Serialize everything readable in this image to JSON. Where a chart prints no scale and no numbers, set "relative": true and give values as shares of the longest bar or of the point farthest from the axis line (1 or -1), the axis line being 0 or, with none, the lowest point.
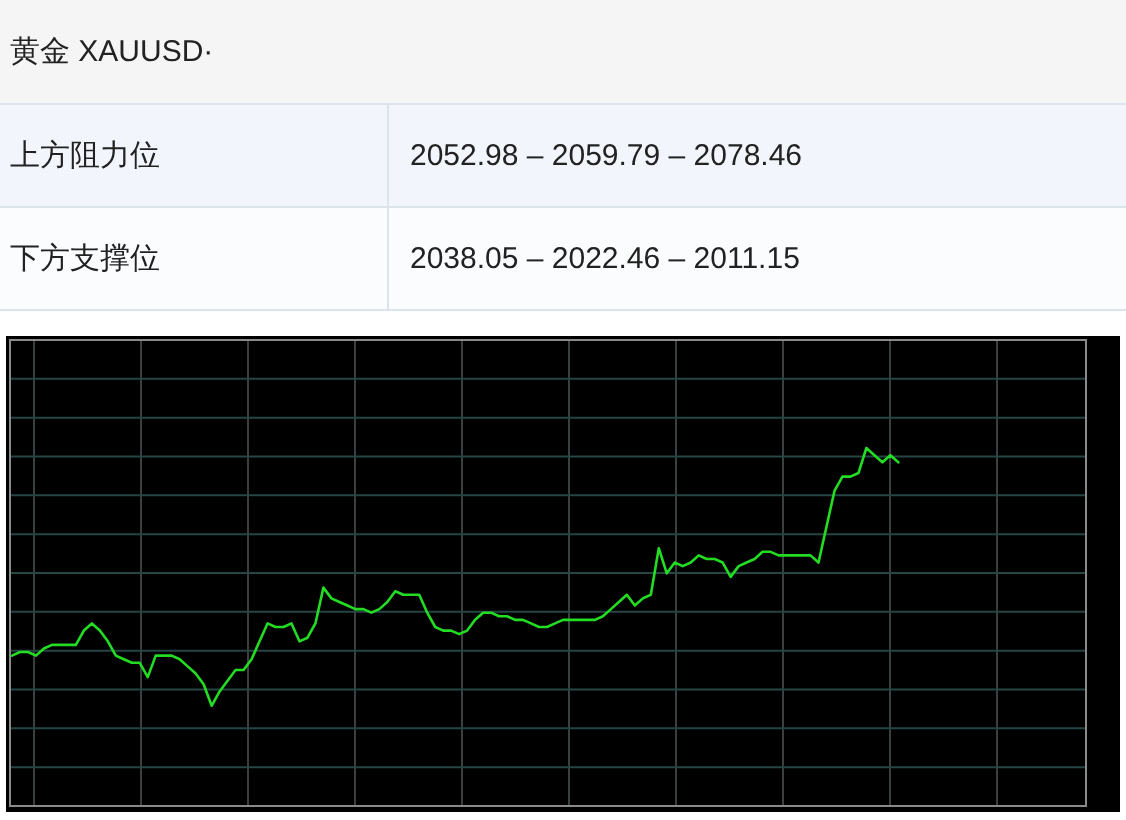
{
  "chart_data": [
    {
      "type": "other",
      "title": "黄金 XAUUSD·",
      "annotations": [
        "上方阻力位",
        "2052.98 – 2059.79 – 2078.46",
        "下方支撑位",
        "2038.05 – 2022.46 – 2011.15"
      ]
    },
    {
      "type": "line",
      "relative": true,
      "color": "#22dd22",
      "grid": true,
      "categories": [
        null,
        null,
        null,
        null,
        null,
        null,
        null,
        null,
        null,
        null,
        null,
        null,
        null,
        null,
        null,
        null,
        null,
        null,
        null,
        null,
        null,
        null,
        null,
        null,
        null,
        null,
        null,
        null,
        null,
        null,
        null,
        null,
        null,
        null,
        null,
        null,
        null,
        null,
        null,
        null,
        null,
        null,
        null,
        null,
        null,
        null,
        null,
        null,
        null,
        null,
        null,
        null,
        null,
        null,
        null,
        null,
        null,
        null,
        null,
        null,
        null,
        null,
        null,
        null,
        null,
        null,
        null,
        null,
        null,
        null,
        null,
        null,
        null,
        null,
        null,
        null,
        null,
        null,
        null,
        null,
        null,
        null,
        null,
        null,
        null,
        null,
        null,
        null,
        null,
        null,
        null,
        null,
        null,
        null,
        null,
        null,
        null,
        null,
        null,
        null,
        null,
        null,
        null,
        null,
        null,
        null,
        null,
        null,
        null,
        null,
        null,
        null,
        null,
        null,
        null,
        null,
        null,
        null,
        null,
        null,
        null,
        null,
        null,
        null,
        null,
        null,
        null,
        null,
        null,
        null,
        null,
        null,
        null,
        null,
        null
      ],
      "values": [
        0.42,
        0.43,
        0.43,
        0.42,
        0.44,
        0.45,
        0.45,
        0.45,
        0.45,
        0.49,
        0.51,
        0.49,
        0.46,
        0.42,
        0.41,
        0.4,
        0.4,
        0.36,
        0.42,
        0.42,
        0.42,
        0.41,
        0.39,
        0.37,
        0.34,
        0.28,
        0.32,
        0.35,
        0.38,
        0.38,
        0.41,
        0.46,
        0.51,
        0.5,
        0.5,
        0.51,
        0.46,
        0.47,
        0.51,
        0.61,
        0.58,
        0.57,
        0.56,
        0.55,
        0.55,
        0.54,
        0.55,
        0.57,
        0.6,
        0.59,
        0.59,
        0.59,
        0.54,
        0.5,
        0.49,
        0.49,
        0.48,
        0.49,
        0.52,
        0.54,
        0.54,
        0.53,
        0.53,
        0.52,
        0.52,
        0.51,
        0.5,
        0.5,
        0.51,
        0.52,
        0.52,
        0.52,
        0.52,
        0.52,
        0.53,
        0.55,
        0.57,
        0.59,
        0.56,
        0.58,
        0.59,
        0.72,
        0.65,
        0.68,
        0.67,
        0.68,
        0.7,
        0.69,
        0.69,
        0.68,
        0.64,
        0.67,
        0.68,
        0.69,
        0.71,
        0.71,
        0.7,
        0.7,
        0.7,
        0.7,
        0.7,
        0.68,
        0.78,
        0.88,
        0.92,
        0.92,
        0.93,
        1,
        0.98,
        0.96,
        0.98,
        0.96,
        null,
        null,
        null,
        null,
        null,
        null,
        null,
        null,
        null,
        null,
        null,
        null,
        null,
        null,
        null,
        null,
        null,
        null,
        null,
        null,
        null,
        null,
        null
      ]
    }
  ]
}
